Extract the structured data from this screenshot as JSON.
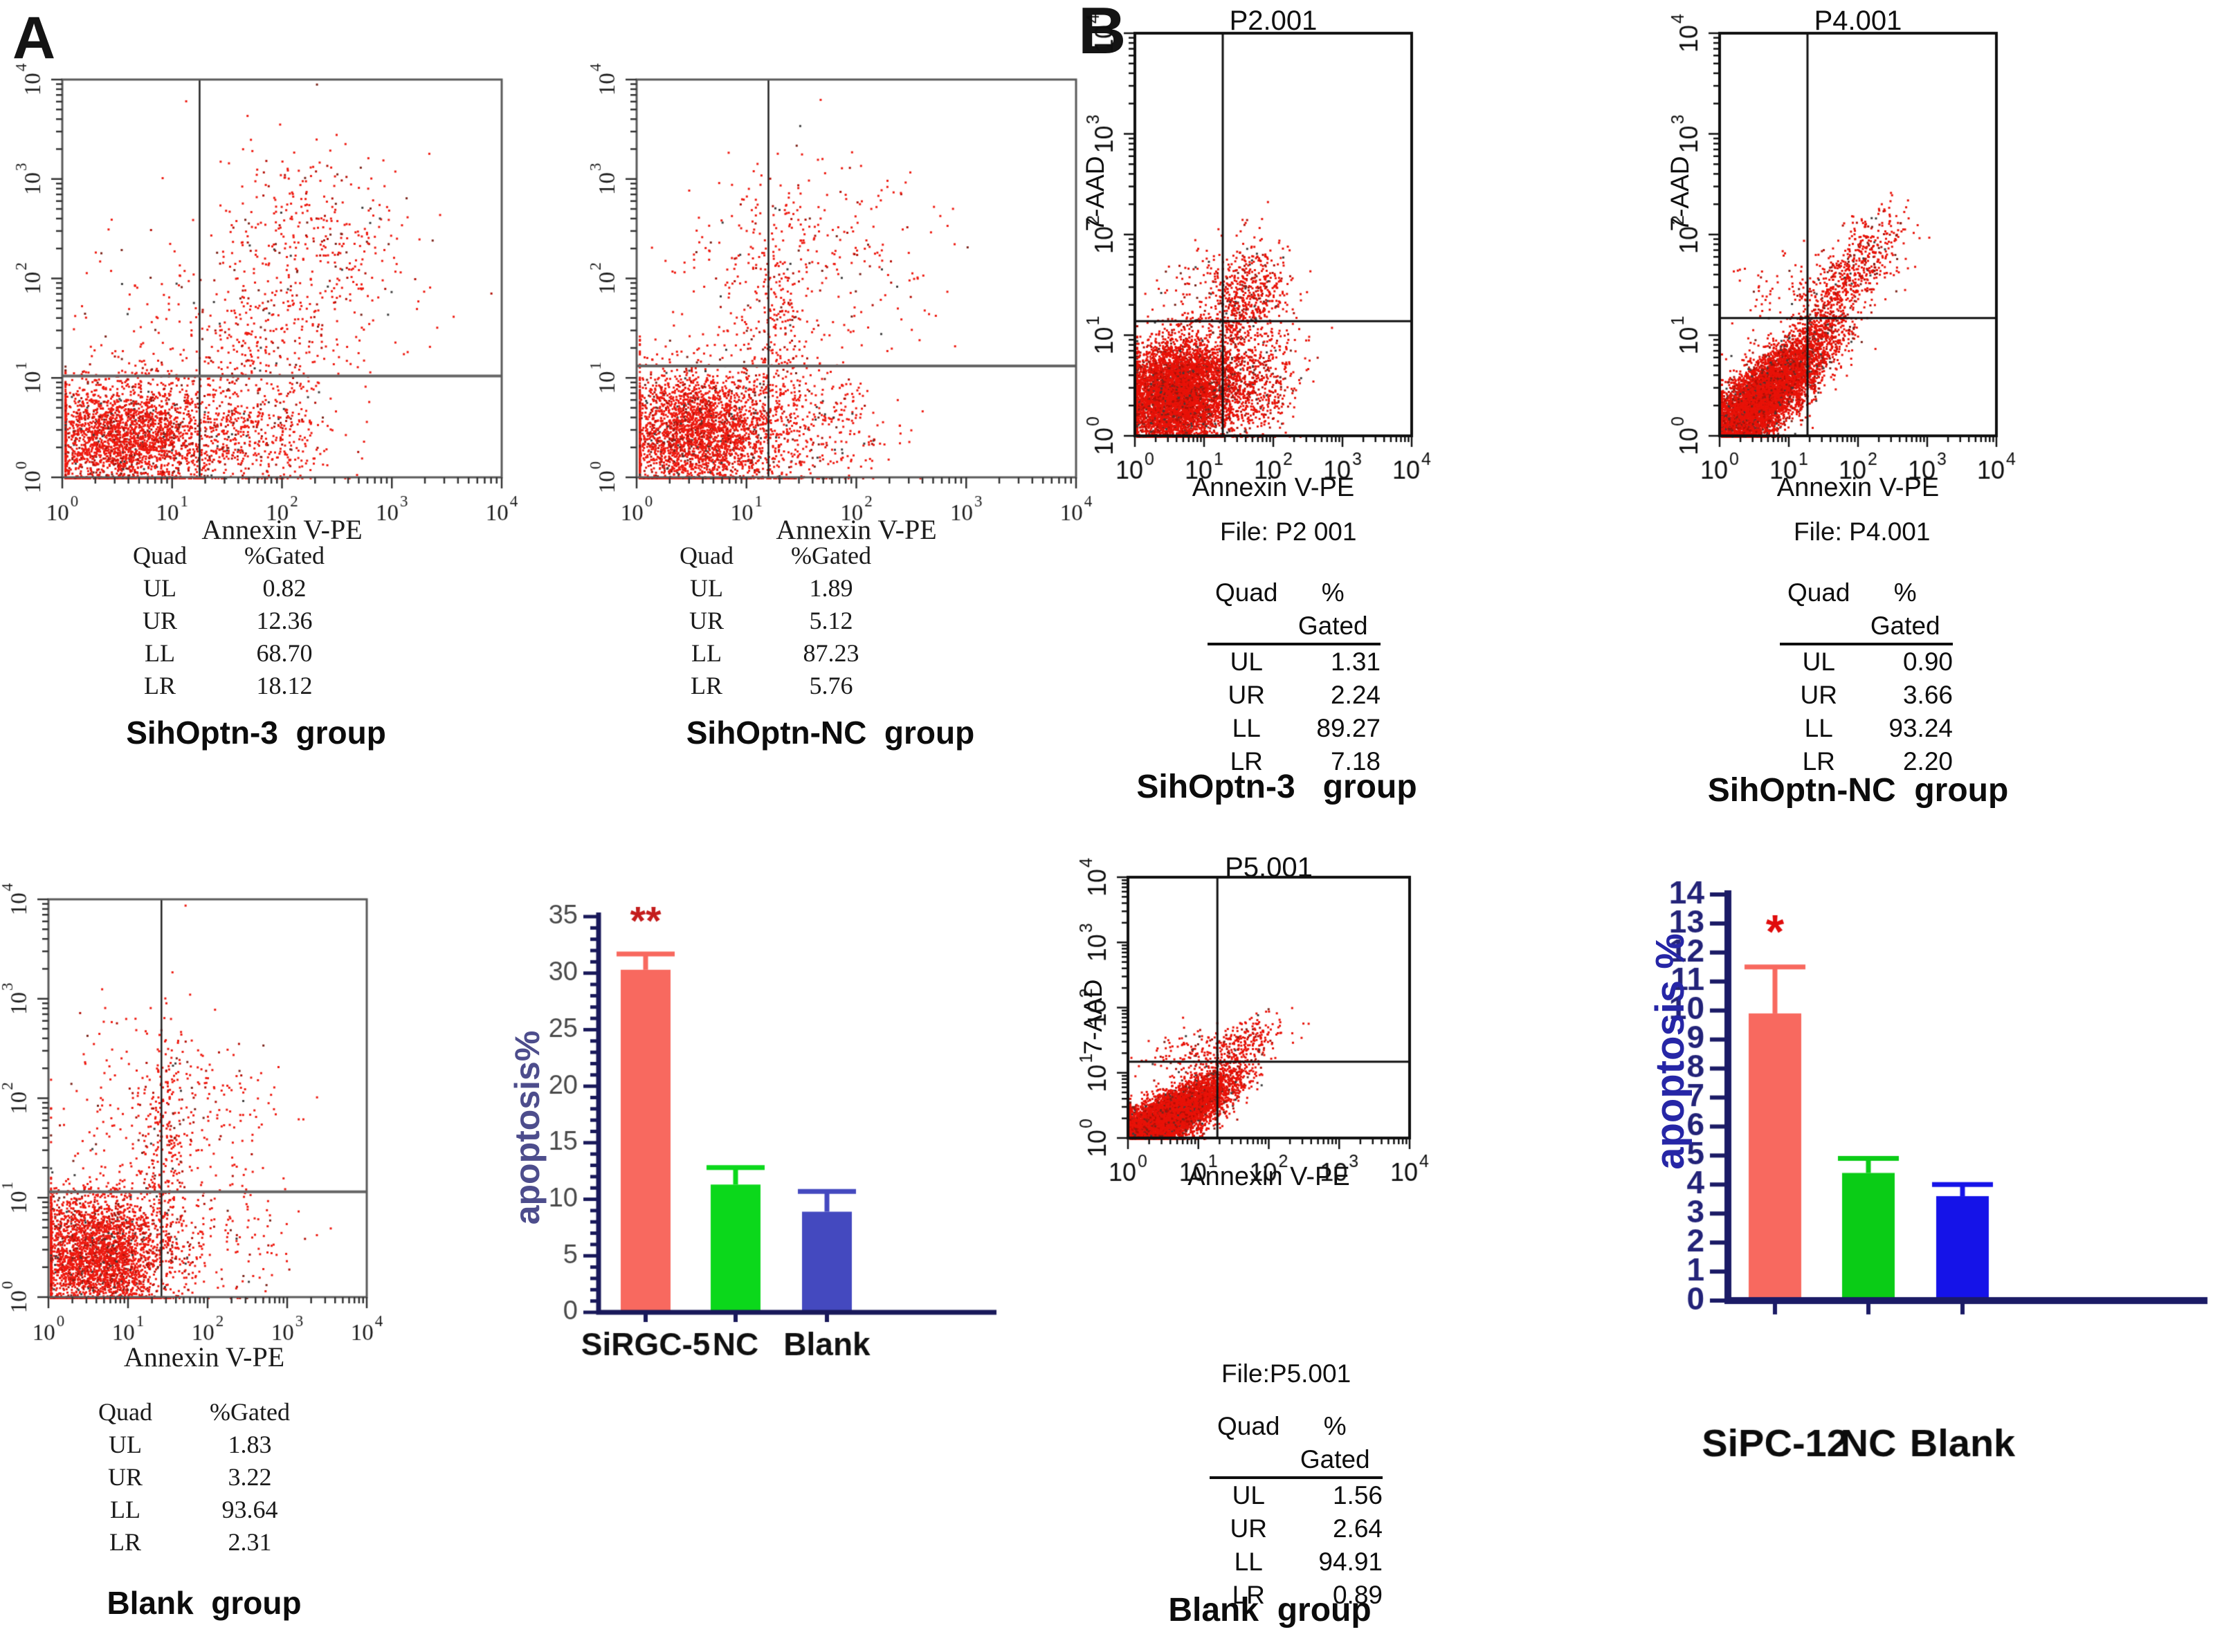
{
  "panels": {
    "a_label": "A",
    "b_label": "B"
  },
  "chart_data": [
    {
      "id": "A1",
      "type": "scatter",
      "style": "A",
      "title": "",
      "file_label": "",
      "xlabel": "Annexin V-PE",
      "ylabel": "",
      "x_axis": {
        "scale": "log",
        "decades": [
          0,
          1,
          2,
          3,
          4
        ]
      },
      "y_axis": {
        "scale": "log",
        "decades": [
          0,
          1,
          2,
          3,
          4
        ]
      },
      "quadrant_gates": {
        "x_exp": 1.25,
        "y_exp": 1.02
      },
      "quad_table": {
        "col1": "Quad",
        "col2": "%Gated",
        "rows": [
          {
            "q": "UL",
            "v": "0.82"
          },
          {
            "q": "UR",
            "v": "12.36"
          },
          {
            "q": "LL",
            "v": "68.70"
          },
          {
            "q": "LR",
            "v": "18.12"
          }
        ]
      },
      "group_label": "SihOptn-3  group",
      "point_color": "#ee1a10",
      "clusters": [
        {
          "n": 2700,
          "cx": 0.55,
          "cy": 0.4,
          "sx": 0.42,
          "sy": 0.3,
          "rot": 0
        },
        {
          "n": 500,
          "cx": 1.7,
          "cy": 0.45,
          "sx": 0.4,
          "sy": 0.28,
          "rot": 0
        },
        {
          "n": 420,
          "cx": 2.3,
          "cy": 2.3,
          "sx": 0.42,
          "sy": 0.55,
          "rot": 0.3
        },
        {
          "n": 260,
          "cx": 1.75,
          "cy": 1.35,
          "sx": 0.35,
          "sy": 0.4,
          "rot": 0.5
        },
        {
          "n": 60,
          "cx": 0.75,
          "cy": 1.9,
          "sx": 0.38,
          "sy": 0.5,
          "rot": 0
        }
      ]
    },
    {
      "id": "A2",
      "type": "scatter",
      "style": "A",
      "title": "",
      "file_label": "",
      "xlabel": "Annexin V-PE",
      "ylabel": "",
      "x_axis": {
        "scale": "log",
        "decades": [
          0,
          1,
          2,
          3,
          4
        ]
      },
      "y_axis": {
        "scale": "log",
        "decades": [
          0,
          1,
          2,
          3,
          4
        ]
      },
      "quadrant_gates": {
        "x_exp": 1.2,
        "y_exp": 1.12
      },
      "quad_table": {
        "col1": "Quad",
        "col2": "%Gated",
        "rows": [
          {
            "q": "UL",
            "v": "1.89"
          },
          {
            "q": "UR",
            "v": "5.12"
          },
          {
            "q": "LL",
            "v": "87.23"
          },
          {
            "q": "LR",
            "v": "5.76"
          }
        ]
      },
      "group_label": "SihOptn-NC  group",
      "point_color": "#ee1a10",
      "clusters": [
        {
          "n": 3100,
          "cx": 0.55,
          "cy": 0.45,
          "sx": 0.4,
          "sy": 0.33,
          "rot": 0
        },
        {
          "n": 300,
          "cx": 1.3,
          "cy": 1.6,
          "sx": 0.15,
          "sy": 0.75,
          "rot": 0
        },
        {
          "n": 250,
          "cx": 1.7,
          "cy": 0.55,
          "sx": 0.32,
          "sy": 0.3,
          "rot": 0
        },
        {
          "n": 180,
          "cx": 1.9,
          "cy": 2.2,
          "sx": 0.45,
          "sy": 0.5,
          "rot": 0
        },
        {
          "n": 90,
          "cx": 0.8,
          "cy": 1.9,
          "sx": 0.35,
          "sy": 0.5,
          "rot": 0
        }
      ]
    },
    {
      "id": "A3",
      "type": "scatter",
      "style": "A",
      "title": "",
      "file_label": "",
      "xlabel": "Annexin V-PE",
      "ylabel": "",
      "x_axis": {
        "scale": "log",
        "decades": [
          0,
          1,
          2,
          3,
          4
        ]
      },
      "y_axis": {
        "scale": "log",
        "decades": [
          0,
          1,
          2,
          3,
          4
        ]
      },
      "quadrant_gates": {
        "x_exp": 1.42,
        "y_exp": 1.06
      },
      "quad_table": {
        "col1": "Quad",
        "col2": "%Gated",
        "rows": [
          {
            "q": "UL",
            "v": "1.83"
          },
          {
            "q": "UR",
            "v": "3.22"
          },
          {
            "q": "LL",
            "v": "93.64"
          },
          {
            "q": "LR",
            "v": "2.31"
          }
        ]
      },
      "group_label": "Blank  group",
      "point_color": "#ee1a10",
      "clusters": [
        {
          "n": 3300,
          "cx": 0.6,
          "cy": 0.42,
          "sx": 0.45,
          "sy": 0.32,
          "rot": 0
        },
        {
          "n": 280,
          "cx": 1.45,
          "cy": 1.55,
          "sx": 0.18,
          "sy": 0.65,
          "rot": 0
        },
        {
          "n": 180,
          "cx": 2.0,
          "cy": 1.9,
          "sx": 0.5,
          "sy": 0.45,
          "rot": 0
        },
        {
          "n": 130,
          "cx": 2.2,
          "cy": 0.5,
          "sx": 0.5,
          "sy": 0.3,
          "rot": 0
        },
        {
          "n": 110,
          "cx": 0.8,
          "cy": 1.8,
          "sx": 0.4,
          "sy": 0.5,
          "rot": 0
        }
      ]
    },
    {
      "id": "AB",
      "type": "bar",
      "categories": [
        "SiRGC-5",
        "NC",
        "Blank"
      ],
      "values": [
        30.3,
        11.3,
        8.9
      ],
      "errors": [
        1.4,
        1.5,
        1.8
      ],
      "bar_colors": [
        "#f8695f",
        "#0bd81b",
        "#4449bf"
      ],
      "ylabel": "apoptosis%",
      "ylim": [
        0,
        35
      ],
      "yticks": [
        0,
        5,
        10,
        15,
        20,
        25,
        30,
        35
      ],
      "minor_step": 1,
      "axis_color": "#19195a",
      "tick_label_color": "#4a4a4a",
      "category_color": "#101010",
      "significance": {
        "text": "**",
        "bar_index": 0,
        "color": "#c41d1d"
      }
    },
    {
      "id": "B1",
      "type": "scatter",
      "style": "B",
      "title": "P2.001",
      "file_label": "File: P2 001",
      "xlabel": "Annexin V-PE",
      "ylabel": "7-AAD",
      "x_axis": {
        "scale": "log",
        "decades": [
          0,
          1,
          2,
          3,
          4
        ]
      },
      "y_axis": {
        "scale": "log",
        "decades": [
          0,
          1,
          2,
          3,
          4
        ]
      },
      "quadrant_gates": {
        "x_exp": 1.27,
        "y_exp": 1.14
      },
      "quad_table": {
        "col1": "Quad",
        "col2": "% Gated",
        "rows": [
          {
            "q": "UL",
            "v": "1.31"
          },
          {
            "q": "UR",
            "v": "2.24"
          },
          {
            "q": "LL",
            "v": "89.27"
          },
          {
            "q": "LR",
            "v": "7.18"
          }
        ]
      },
      "group_label": "SihOptn-3   group",
      "point_color": "#e81208",
      "clusters": [
        {
          "n": 6200,
          "cx": 0.58,
          "cy": 0.42,
          "sx": 0.4,
          "sy": 0.26,
          "rot": 0.15
        },
        {
          "n": 700,
          "cx": 1.65,
          "cy": 0.55,
          "sx": 0.38,
          "sy": 0.28,
          "rot": 0.2
        },
        {
          "n": 420,
          "cx": 1.7,
          "cy": 1.45,
          "sx": 0.3,
          "sy": 0.25,
          "rot": 0.5
        },
        {
          "n": 180,
          "cx": 1.45,
          "cy": 1.25,
          "sx": 0.2,
          "sy": 0.18,
          "rot": 0.5
        },
        {
          "n": 100,
          "cx": 0.9,
          "cy": 1.45,
          "sx": 0.3,
          "sy": 0.22,
          "rot": 0.2
        }
      ]
    },
    {
      "id": "B2",
      "type": "scatter",
      "style": "B",
      "title": "P4.001",
      "file_label": "File: P4.001",
      "xlabel": "Annexin V-PE",
      "ylabel": "7-AAD",
      "x_axis": {
        "scale": "log",
        "decades": [
          0,
          1,
          2,
          3,
          4
        ]
      },
      "y_axis": {
        "scale": "log",
        "decades": [
          0,
          1,
          2,
          3,
          4
        ]
      },
      "quadrant_gates": {
        "x_exp": 1.27,
        "y_exp": 1.17
      },
      "quad_table": {
        "col1": "Quad",
        "col2": "% Gated",
        "rows": [
          {
            "q": "UL",
            "v": "0.90"
          },
          {
            "q": "UR",
            "v": "3.66"
          },
          {
            "q": "LL",
            "v": "93.24"
          },
          {
            "q": "LR",
            "v": "2.20"
          }
        ]
      },
      "group_label": "SihOptn-NC  group",
      "point_color": "#e81208",
      "clusters": [
        {
          "n": 6600,
          "cx": 0.55,
          "cy": 0.35,
          "sx": 0.5,
          "sy": 0.17,
          "rot": 0.55
        },
        {
          "n": 600,
          "cx": 1.35,
          "cy": 0.9,
          "sx": 0.35,
          "sy": 0.15,
          "rot": 0.6
        },
        {
          "n": 450,
          "cx": 1.8,
          "cy": 1.55,
          "sx": 0.38,
          "sy": 0.18,
          "rot": 0.55
        },
        {
          "n": 150,
          "cx": 2.2,
          "cy": 1.9,
          "sx": 0.3,
          "sy": 0.2,
          "rot": 0.5
        },
        {
          "n": 60,
          "cx": 0.8,
          "cy": 1.4,
          "sx": 0.3,
          "sy": 0.2,
          "rot": 0.2
        }
      ]
    },
    {
      "id": "B3",
      "type": "scatter",
      "style": "B",
      "title": "P5.001",
      "file_label": "File:P5.001",
      "xlabel": "Annexin V-PE",
      "ylabel": "7-AAD",
      "x_axis": {
        "scale": "log",
        "decades": [
          0,
          1,
          2,
          3,
          4
        ]
      },
      "y_axis": {
        "scale": "log",
        "decades": [
          0,
          1,
          2,
          3,
          4
        ]
      },
      "quadrant_gates": {
        "x_exp": 1.27,
        "y_exp": 1.17
      },
      "quad_table": {
        "col1": "Quad",
        "col2": "% Gated",
        "rows": [
          {
            "q": "UL",
            "v": "1.56"
          },
          {
            "q": "UR",
            "v": "2.64"
          },
          {
            "q": "LL",
            "v": "94.91"
          },
          {
            "q": "LR",
            "v": "0.89"
          }
        ]
      },
      "group_label": "Blank  group",
      "point_color": "#e81208",
      "clusters": [
        {
          "n": 6800,
          "cx": 0.5,
          "cy": 0.3,
          "sx": 0.46,
          "sy": 0.16,
          "rot": 0.5
        },
        {
          "n": 420,
          "cx": 1.2,
          "cy": 0.85,
          "sx": 0.3,
          "sy": 0.15,
          "rot": 0.5
        },
        {
          "n": 260,
          "cx": 1.6,
          "cy": 1.45,
          "sx": 0.33,
          "sy": 0.17,
          "rot": 0.5
        },
        {
          "n": 120,
          "cx": 0.85,
          "cy": 1.3,
          "sx": 0.3,
          "sy": 0.18,
          "rot": 0.3
        }
      ]
    },
    {
      "id": "BB",
      "type": "bar",
      "categories": [
        "SiPC-12",
        "NC",
        "Blank"
      ],
      "values": [
        9.9,
        4.4,
        3.6
      ],
      "errors": [
        1.6,
        0.5,
        0.4
      ],
      "bar_colors": [
        "#f8695f",
        "#0acc16",
        "#1513e8"
      ],
      "ylabel": "apoptosis  %",
      "ylim": [
        0,
        14
      ],
      "yticks": [
        0,
        1,
        2,
        3,
        4,
        5,
        6,
        7,
        8,
        9,
        10,
        11,
        12,
        13,
        14
      ],
      "minor_step": 0,
      "axis_color": "#1b1b66",
      "tick_label_color": "#232378",
      "category_color": "#0c0c0c",
      "significance": {
        "text": "*",
        "bar_index": 0,
        "color": "#e00d0d"
      }
    }
  ]
}
